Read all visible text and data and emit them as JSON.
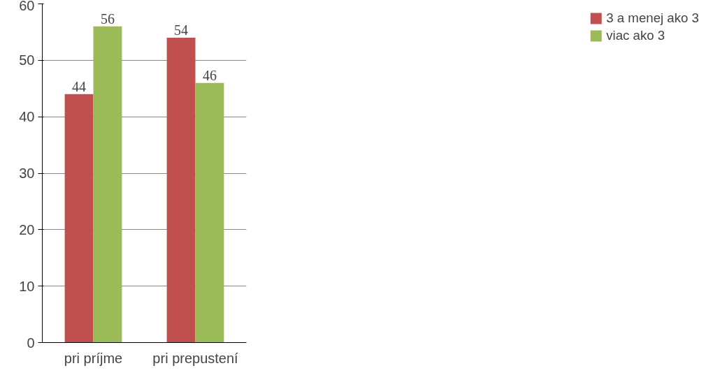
{
  "chart_data": {
    "type": "bar",
    "categories": [
      "pri príjme",
      "pri prepustení"
    ],
    "series": [
      {
        "name": "3 a menej ako 3",
        "color": "#c0504d",
        "values": [
          44,
          54
        ]
      },
      {
        "name": "viac ako 3",
        "color": "#9bbb59",
        "values": [
          56,
          46
        ]
      }
    ],
    "ylim": [
      0,
      60
    ],
    "yticks": [
      0,
      10,
      20,
      30,
      40,
      50,
      60
    ],
    "grid": "y",
    "legend": "right",
    "data_labels": true
  }
}
